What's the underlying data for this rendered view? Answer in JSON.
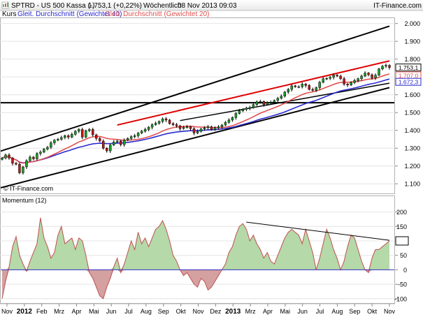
{
  "header": {
    "symbol": "SPTRD - US 500 Kassa (-)",
    "price": "1.753,1 (+0,22%)",
    "period": "Wöchentlich",
    "datetime": "08 Nov 2013 09:03",
    "source": "IT-Finance.com"
  },
  "legend": {
    "kurs": "Kurs",
    "ma40": "Gleit. Durchschnitt (Gewichtet 40)",
    "ma20": "Gleit. Durchschnitt (Gewichtet 20)"
  },
  "watermark": "© IT-Finance.com",
  "colors": {
    "up": "#1e9e2a",
    "down": "#c01818",
    "ma40": "#2a2ad0",
    "ma20": "#e05050",
    "trend": "#000000",
    "resistance": "#e00000",
    "momentum_pos": "#b5d9a8",
    "momentum_neg": "#d4a0a0",
    "zero_line": "#3030c0"
  },
  "chart_data": [
    {
      "type": "candlestick",
      "title": "SPTRD - US 500 Kassa (-)",
      "x_labels": [
        "Nov",
        "2012",
        "Feb",
        "Mrz",
        "Apr",
        "Mai",
        "Jun",
        "Jul",
        "Aug",
        "Sep",
        "Okt",
        "Nov",
        "Dez",
        "2013",
        "Mrz",
        "Apr",
        "Mai",
        "Jun",
        "Jul",
        "Aug",
        "Sep",
        "Okt",
        "Nov"
      ],
      "y_ticks": [
        "1.100",
        "1.200",
        "1.300",
        "1.400",
        "1.500",
        "1.600",
        "1.700",
        "1.800",
        "1.900",
        "2.000"
      ],
      "ylim": [
        1050,
        2030
      ],
      "close": [
        1245,
        1262,
        1245,
        1215,
        1210,
        1162,
        1195,
        1230,
        1250,
        1240,
        1270,
        1278,
        1295,
        1305,
        1330,
        1345,
        1350,
        1360,
        1370,
        1362,
        1378,
        1395,
        1405,
        1362,
        1398,
        1405,
        1375,
        1355,
        1340,
        1300,
        1285,
        1318,
        1335,
        1340,
        1320,
        1345,
        1355,
        1365,
        1370,
        1385,
        1395,
        1405,
        1418,
        1432,
        1440,
        1450,
        1465,
        1458,
        1438,
        1432,
        1425,
        1410,
        1418,
        1420,
        1410,
        1385,
        1395,
        1408,
        1415,
        1420,
        1405,
        1415,
        1420,
        1430,
        1445,
        1458,
        1472,
        1495,
        1510,
        1518,
        1525,
        1528,
        1545,
        1560,
        1562,
        1545,
        1555,
        1558,
        1568,
        1580,
        1592,
        1615,
        1630,
        1650,
        1645,
        1645,
        1660,
        1652,
        1630,
        1625,
        1640,
        1670,
        1690,
        1692,
        1698,
        1710,
        1705,
        1690,
        1660,
        1655,
        1668,
        1680,
        1690,
        1705,
        1722,
        1712,
        1695,
        1710,
        1745,
        1760,
        1765,
        1753.1
      ],
      "price_labels": [
        "1.753,1",
        "1.707,0",
        "1.672,3"
      ],
      "series": [
        {
          "name": "Kurs",
          "values": "close"
        },
        {
          "name": "Gleit. Durchschnitt (Gewichtet 40)",
          "values": "ma40"
        },
        {
          "name": "Gleit. Durchschnitt (Gewichtet 20)",
          "values": "ma20"
        }
      ]
    },
    {
      "type": "area",
      "title": "Momentum (12)",
      "y_ticks": [
        "-100",
        "-50",
        "0",
        "50",
        "100",
        "150",
        "200"
      ],
      "ylim": [
        -115,
        228
      ],
      "values": [
        -100,
        -40,
        10,
        80,
        115,
        50,
        20,
        -5,
        30,
        60,
        90,
        180,
        110,
        80,
        40,
        60,
        120,
        150,
        90,
        100,
        110,
        70,
        110,
        100,
        50,
        -10,
        -30,
        -60,
        -90,
        -100,
        -60,
        -30,
        10,
        40,
        -10,
        20,
        60,
        100,
        70,
        130,
        90,
        110,
        80,
        110,
        140,
        150,
        170,
        140,
        100,
        50,
        30,
        0,
        -20,
        -10,
        -30,
        -50,
        -60,
        -30,
        -40,
        -70,
        -60,
        -40,
        -20,
        0,
        20,
        60,
        80,
        120,
        150,
        160,
        140,
        100,
        120,
        90,
        70,
        40,
        60,
        30,
        20,
        50,
        80,
        110,
        130,
        140,
        130,
        120,
        90,
        140,
        100,
        60,
        0,
        40,
        90,
        140,
        110,
        70,
        40,
        0,
        30,
        80,
        120,
        110,
        70,
        30,
        0,
        -10,
        40,
        70,
        70,
        80,
        90,
        100
      ]
    }
  ]
}
